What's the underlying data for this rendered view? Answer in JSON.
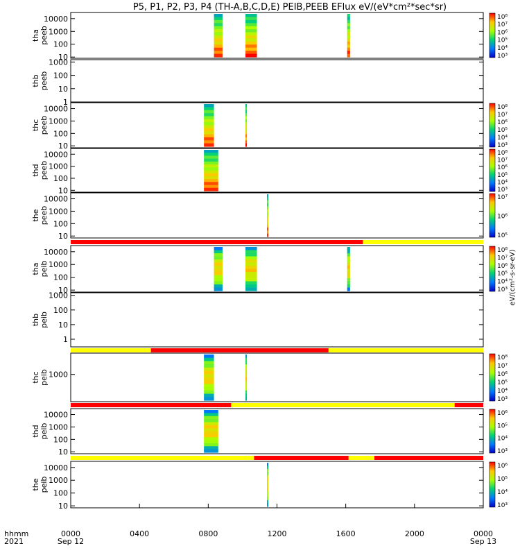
{
  "title": "P5, P1, P2, P3, P4 (TH-A,B,C,D,E) PEIB,PEEB EFlux eV/(eV*cm²*sec*sr)",
  "bottom_axis": {
    "row_label_1": "hhmm",
    "row_label_2": "2021",
    "ticks": [
      "0000",
      "0400",
      "0800",
      "1200",
      "1600",
      "2000",
      "0000"
    ],
    "date_start": "Sep 12",
    "date_end": "Sep 13"
  },
  "colorbar_label": "eV/(cm²-s-sr-eV)",
  "colors": {
    "low": "#0000cc",
    "mid": "#00cc66",
    "high": "#ffff00",
    "max": "#ff0000",
    "mode_red": "#ff0000",
    "mode_yellow": "#ffff00"
  },
  "chart_data": [
    {
      "type": "heatmap",
      "probe": "tha",
      "ylabel": [
        "tha",
        "peeb"
      ],
      "y_ticks": [
        "10000",
        "1000",
        "100",
        "10"
      ],
      "ylim": [
        8,
        30000
      ],
      "y_scale": "log",
      "xlim": [
        "Sep 12 00:00",
        "Sep 13 00:00"
      ],
      "cbar_ticks": [
        "10⁸",
        "10⁷",
        "10⁶",
        "10⁵",
        "10⁴",
        "10³"
      ],
      "intervals": [
        [
          "08:20",
          "08:50"
        ],
        [
          "10:10",
          "10:50"
        ],
        [
          "16:05",
          "16:15"
        ]
      ]
    },
    {
      "type": "heatmap",
      "probe": "thb",
      "ylabel": [
        "thb",
        "peeb"
      ],
      "y_ticks": [
        "1000",
        "100",
        "10",
        "1"
      ],
      "ylim": [
        1,
        1500
      ],
      "y_scale": "log",
      "xlim": [
        "Sep 12 00:00",
        "Sep 13 00:00"
      ],
      "cbar_ticks": [],
      "intervals": []
    },
    {
      "type": "heatmap",
      "probe": "thc",
      "ylabel": [
        "thc",
        "peeb"
      ],
      "y_ticks": [
        "10000",
        "1000",
        "100",
        "10"
      ],
      "ylim": [
        7,
        30000
      ],
      "y_scale": "log",
      "xlim": [
        "Sep 12 00:00",
        "Sep 13 00:00"
      ],
      "cbar_ticks": [
        "10⁸",
        "10⁷",
        "10⁶",
        "10⁵",
        "10⁴",
        "10³"
      ],
      "intervals": [
        [
          "07:45",
          "08:20"
        ],
        [
          "10:10",
          "10:15"
        ]
      ]
    },
    {
      "type": "heatmap",
      "probe": "thd",
      "ylabel": [
        "thd",
        "peeb"
      ],
      "y_ticks": [
        "10000",
        "1000",
        "100",
        "10"
      ],
      "ylim": [
        7,
        30000
      ],
      "y_scale": "log",
      "xlim": [
        "Sep 12 00:00",
        "Sep 13 00:00"
      ],
      "cbar_ticks": [
        "10⁸",
        "10⁷",
        "10⁶",
        "10⁵",
        "10⁴",
        "10³"
      ],
      "intervals": [
        [
          "07:45",
          "08:35"
        ]
      ]
    },
    {
      "type": "heatmap",
      "probe": "the",
      "ylabel": [
        "the",
        "peeb"
      ],
      "y_ticks": [
        "10000",
        "1000",
        "100",
        "10"
      ],
      "ylim": [
        7,
        30000
      ],
      "y_scale": "log",
      "xlim": [
        "Sep 12 00:00",
        "Sep 13 00:00"
      ],
      "cbar_ticks": [
        "10⁷",
        "10⁶",
        "10⁵"
      ],
      "intervals": [
        [
          "11:25",
          "11:30"
        ]
      ]
    },
    {
      "type": "heatmap",
      "probe": "tha",
      "ylabel": [
        "tha",
        "peib"
      ],
      "y_ticks": [
        "10000",
        "1000",
        "100",
        "10"
      ],
      "ylim": [
        7,
        30000
      ],
      "y_scale": "log",
      "xlim": [
        "Sep 12 00:00",
        "Sep 13 00:00"
      ],
      "cbar_ticks": [
        "10⁸",
        "10⁷",
        "10⁶",
        "10⁵",
        "10⁴",
        "10³"
      ],
      "mode_bar": [
        [
          "00:00",
          "17:00",
          "red"
        ],
        [
          "17:00",
          "24:00",
          "yellow"
        ]
      ],
      "intervals": [
        [
          "08:20",
          "08:50"
        ],
        [
          "10:10",
          "10:50"
        ],
        [
          "16:05",
          "16:15"
        ]
      ]
    },
    {
      "type": "heatmap",
      "probe": "thb",
      "ylabel": [
        "thb",
        "peib"
      ],
      "y_ticks": [
        "1000",
        "100",
        "10",
        "1"
      ],
      "ylim": [
        0.3,
        1500
      ],
      "y_scale": "log",
      "xlim": [
        "Sep 12 00:00",
        "Sep 13 00:00"
      ],
      "cbar_ticks": [],
      "intervals": []
    },
    {
      "type": "heatmap",
      "probe": "thc",
      "ylabel": [
        "thc",
        "peib"
      ],
      "y_ticks": [
        "1000"
      ],
      "ylim": [
        60,
        9000
      ],
      "y_scale": "log",
      "xlim": [
        "Sep 12 00:00",
        "Sep 13 00:00"
      ],
      "cbar_ticks": [
        "10⁸",
        "10⁷",
        "10⁶",
        "10⁵",
        "10⁴",
        "10³"
      ],
      "mode_bar": [
        [
          "00:00",
          "04:40",
          "yellow"
        ],
        [
          "04:40",
          "15:00",
          "red"
        ],
        [
          "15:00",
          "24:00",
          "yellow"
        ]
      ],
      "intervals": [
        [
          "07:45",
          "08:20"
        ],
        [
          "10:10",
          "10:15"
        ]
      ]
    },
    {
      "type": "heatmap",
      "probe": "thd",
      "ylabel": [
        "thd",
        "peib"
      ],
      "y_ticks": [
        "10000",
        "1000",
        "100",
        "10"
      ],
      "ylim": [
        7,
        30000
      ],
      "y_scale": "log",
      "xlim": [
        "Sep 12 00:00",
        "Sep 13 00:00"
      ],
      "cbar_ticks": [
        "10⁶",
        "10⁵",
        "10⁴",
        "10³"
      ],
      "mode_bar": [
        [
          "00:00",
          "09:20",
          "red"
        ],
        [
          "09:20",
          "22:20",
          "yellow"
        ],
        [
          "22:20",
          "24:00",
          "red"
        ]
      ],
      "intervals": [
        [
          "07:45",
          "08:35"
        ]
      ]
    },
    {
      "type": "heatmap",
      "probe": "the",
      "ylabel": [
        "the",
        "peib"
      ],
      "y_ticks": [
        "10000",
        "1000",
        "100",
        "10"
      ],
      "ylim": [
        7,
        30000
      ],
      "y_scale": "log",
      "xlim": [
        "Sep 12 00:00",
        "Sep 13 00:00"
      ],
      "cbar_ticks": [
        "10⁶",
        "10⁵",
        "10⁴",
        "10³"
      ],
      "mode_bar": [
        [
          "00:00",
          "10:40",
          "yellow"
        ],
        [
          "10:40",
          "16:10",
          "red"
        ],
        [
          "16:10",
          "17:40",
          "yellow"
        ],
        [
          "17:40",
          "24:00",
          "red"
        ]
      ],
      "intervals": [
        [
          "11:25",
          "11:30"
        ]
      ]
    }
  ]
}
